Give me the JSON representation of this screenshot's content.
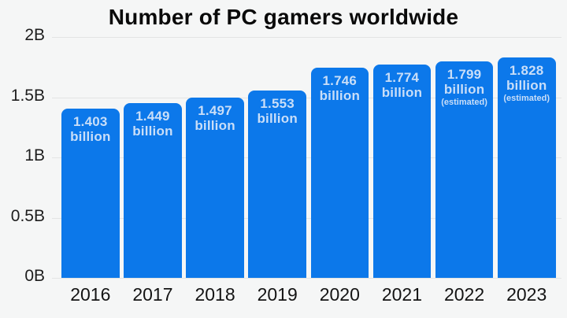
{
  "title": "Number of PC gamers worldwide",
  "chart_data": {
    "type": "bar",
    "title": "Number of PC gamers worldwide",
    "xlabel": "",
    "ylabel": "",
    "categories": [
      "2016",
      "2017",
      "2018",
      "2019",
      "2020",
      "2021",
      "2022",
      "2023"
    ],
    "values": [
      1.403,
      1.449,
      1.497,
      1.553,
      1.746,
      1.774,
      1.799,
      1.828
    ],
    "bar_labels": [
      {
        "value": "1.403",
        "unit": "billion",
        "note": ""
      },
      {
        "value": "1.449",
        "unit": "billion",
        "note": ""
      },
      {
        "value": "1.497",
        "unit": "billion",
        "note": ""
      },
      {
        "value": "1.553",
        "unit": "billion",
        "note": ""
      },
      {
        "value": "1.746",
        "unit": "billion",
        "note": ""
      },
      {
        "value": "1.774",
        "unit": "billion",
        "note": ""
      },
      {
        "value": "1.799",
        "unit": "billion",
        "note": "(estimated)"
      },
      {
        "value": "1.828",
        "unit": "billion",
        "note": "(estimated)"
      }
    ],
    "ylim": [
      0,
      2
    ],
    "yticks": [
      {
        "value": 0,
        "label": "0B"
      },
      {
        "value": 0.5,
        "label": "0.5B"
      },
      {
        "value": 1,
        "label": "1B"
      },
      {
        "value": 1.5,
        "label": "1.5B"
      },
      {
        "value": 2,
        "label": "2B"
      }
    ],
    "grid": true,
    "legend": false,
    "colors": {
      "bar": "#0c78ea",
      "bar_label_text": "#c9def8",
      "background": "#f5f6f6",
      "gridline": "#e3e4e4",
      "title_text": "#0a0a0a",
      "tick_text": "#1e1e1e"
    }
  }
}
